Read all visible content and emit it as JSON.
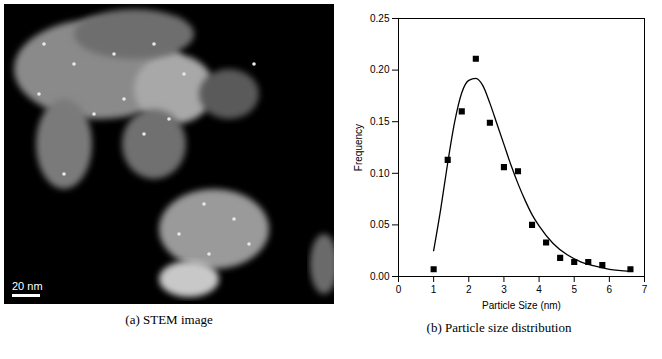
{
  "image_panel": {
    "caption": "(a) STEM image",
    "scale_bar": "20 nm"
  },
  "chart_data": {
    "type": "scatter",
    "caption": "(b) Particle size distribution",
    "x_label": "Particle Size (nm)",
    "y_label": "Frequency",
    "xlim": [
      0,
      7
    ],
    "xticks": [
      0,
      1,
      2,
      3,
      4,
      5,
      6,
      7
    ],
    "ylim": [
      0,
      0.25
    ],
    "yticks": [
      {
        "value": 0,
        "label": "0.00"
      },
      {
        "value": 0.05,
        "label": "0.05"
      },
      {
        "value": 0.1,
        "label": "0.10"
      },
      {
        "value": 0.15,
        "label": "0.15"
      },
      {
        "value": 0.2,
        "label": "0.20"
      },
      {
        "value": 0.25,
        "label": "0.25"
      }
    ],
    "grid": false,
    "series": [
      {
        "type": "scatter",
        "marker": "square",
        "color": "#000000",
        "x": [
          1.0,
          1.4,
          1.8,
          2.2,
          2.6,
          3.0,
          3.4,
          3.8,
          4.2,
          4.6,
          5.0,
          5.4,
          5.8,
          6.6
        ],
        "values": [
          0.007,
          0.113,
          0.16,
          0.211,
          0.149,
          0.106,
          0.102,
          0.05,
          0.033,
          0.018,
          0.014,
          0.014,
          0.011,
          0.007
        ]
      },
      {
        "type": "line",
        "line_style": "solid",
        "color": "#000000",
        "x": [
          1.0,
          1.2,
          1.4,
          1.6,
          1.8,
          2.0,
          2.2,
          2.4,
          2.6,
          2.8,
          3.0,
          3.2,
          3.4,
          3.6,
          3.8,
          4.0,
          4.4,
          4.8,
          5.2,
          5.6,
          6.0,
          6.6
        ],
        "values": [
          0.025,
          0.065,
          0.11,
          0.15,
          0.178,
          0.19,
          0.192,
          0.185,
          0.168,
          0.148,
          0.128,
          0.108,
          0.09,
          0.074,
          0.06,
          0.049,
          0.032,
          0.021,
          0.014,
          0.01,
          0.007,
          0.005
        ]
      }
    ]
  }
}
